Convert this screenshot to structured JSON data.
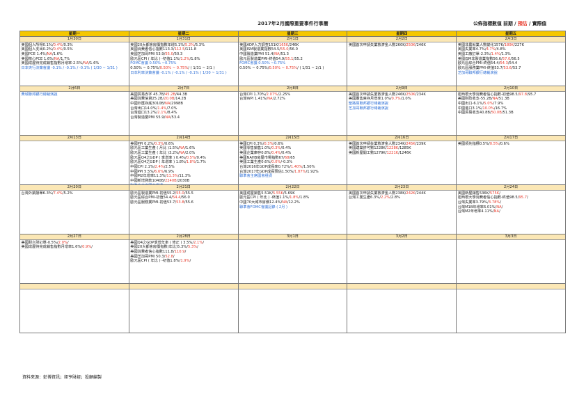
{
  "title": "2017年2月國際重要事件行事曆",
  "legend": {
    "prefix": "公佈指標數值",
    "prior": "前期",
    "slash1": "/",
    "forecast": "預估",
    "slash2": "/",
    "actual": "實際值"
  },
  "weekdays": [
    "星期一",
    "星期二",
    "星期三",
    "星期四",
    "星期五"
  ],
  "colors": {
    "header_bg": "#f5c700",
    "date_bg": "#fbe7b5",
    "forecast": "#e8392a",
    "blue_text": "#2e6fd6"
  },
  "weeks": [
    [
      {
        "date": "1月30日",
        "events": [
          {
            "label": "美國個人所得",
            "values": [
              "0.1%",
              "0.4%",
              "0.3%"
            ]
          },
          {
            "label": "美國個人支出",
            "values": [
              "0.2%",
              "0.4%",
              "0.5%"
            ]
          },
          {
            "label": "美國PCE ",
            "values": [
              "1.4%",
              "NA",
              "1.6%"
            ]
          },
          {
            "label": "美國核心PCE ",
            "values": [
              "1.6%",
              "NA",
              "1.7%"
            ]
          },
          {
            "label": "美國成屋待完成銷售指數月增率",
            "values": [
              "-2.5%",
              "NA",
              "1.6%"
            ]
          },
          {
            "label": "日本央行決策會議 -0.1% / -0.1% / -0.1% ( 1/30 ~ 1/31 )",
            "color": "blue"
          }
        ]
      },
      {
        "date": "1月31日",
        "events": [
          {
            "label": "美國20大都會房價指數年增",
            "values": [
              "5.1%",
              "5.2%",
              "5.3%"
            ]
          },
          {
            "label": "美國消費者信心指數",
            "values": [
              "113.3",
              "112.5",
              "111.8"
            ]
          },
          {
            "label": "美國芝加哥PMI ",
            "values": [
              "53.9",
              "55.0",
              "50.3"
            ]
          },
          {
            "label": "歐元區CPI ( 年比 ) -初值",
            "values": [
              "1.1%",
              "1.2%",
              "1.8%"
            ]
          },
          {
            "label": "FOMC會議 0.50% ~0.75%",
            "color": "blue"
          },
          {
            "label": "",
            "values": [
              "0.50% ~ 0.75%",
              "0.50% ~ 0.75%",
              " ( 1/31 ~ 2/1 )"
            ]
          },
          {
            "label": "日本利率決策會議 -0.1% / -0.1% / -0.1% ( 1/30 ~ 1/31 )",
            "color": "blue"
          }
        ]
      },
      {
        "date": "2月1日",
        "events": [
          {
            "label": "美國ADP人力調查",
            "values": [
              "151K",
              "165K",
              "246K"
            ]
          },
          {
            "label": "美國ISM製造業指數",
            "values": [
              "54.5",
              "55.0",
              "56.0"
            ]
          },
          {
            "label": "中國製造業PMI ",
            "values": [
              "51.4",
              "NA",
              "51.3"
            ]
          },
          {
            "label": "歐元區製造業PMI-終值",
            "values": [
              "54.9",
              "55.1",
              "55.2"
            ]
          },
          {
            "label": "FOMC會議 0.50% ~0.75%",
            "color": "blue"
          },
          {
            "label": "",
            "values": [
              "0.50% ~ 0.75%",
              "0.50% ~ 0.75%",
              " ( 1/31 ~ 2/1 )"
            ]
          }
        ]
      },
      {
        "date": "2月2日",
        "events": [
          {
            "label": "美國首次申請失業救濟金人數",
            "values": [
              "260K",
              "250K",
              "246K"
            ]
          }
        ]
      },
      {
        "date": "2月3日",
        "events": [
          {
            "label": "美國非農就業人數變化",
            "values": [
              "157K",
              "180K",
              "227K"
            ]
          },
          {
            "label": "美國失業率",
            "values": [
              "4.7%",
              "4.7%",
              "4.8%"
            ]
          },
          {
            "label": "美國工廠訂單",
            "values": [
              "-2.3%",
              "1.4%",
              "1.3%"
            ]
          },
          {
            "label": "美國ISM非製造業指數",
            "values": [
              "56.6",
              "57.0",
              "56.5"
            ]
          },
          {
            "label": "歐元區綜合PMI-終值",
            "values": [
              "54.4",
              "54.3",
              "54.4"
            ]
          },
          {
            "label": "歐元區服務業PMI-終值",
            "values": [
              "53.7",
              "53.6",
              "53.7"
            ]
          },
          {
            "label": "芝加哥聯邦銀行總裁演說",
            "color": "blue"
          }
        ]
      }
    ],
    [
      {
        "date": "2月6日",
        "events": [
          {
            "label": "費城聯邦銀行總裁演說",
            "color": "blue"
          }
        ]
      },
      {
        "date": "2月7日",
        "events": [
          {
            "label": "美國貿易赤字 ",
            "values": [
              "45.7B",
              "45.2B",
              "44.3B"
            ]
          },
          {
            "label": "美國消費信貸",
            "values": [
              "25.2B",
              "20.0B",
              "14.2B"
            ]
          },
          {
            "label": "中國外匯存底",
            "values": [
              "3010B",
              "NA",
              "2998B"
            ]
          },
          {
            "label": "台灣出口",
            "values": [
              "14.0%",
              "1.4%",
              "7.0%"
            ]
          },
          {
            "label": "台灣進口",
            "values": [
              "13.2%",
              "2.1%",
              "8.4%"
            ]
          },
          {
            "label": "台灣製造業PMI ",
            "values": [
              "55.9",
              "NA",
              "53.4"
            ]
          }
        ]
      },
      {
        "date": "2月8日",
        "events": [
          {
            "label": "台灣CPI ",
            "values": [
              "1.70%",
              "2.07%",
              "2.25%"
            ]
          },
          {
            "label": "台灣WPI ",
            "values": [
              "1.41%",
              "NA",
              "2.72%"
            ]
          }
        ]
      },
      {
        "date": "2月9日",
        "events": [
          {
            "label": "美國首次申請失業救濟金人數",
            "values": [
              "246K",
              "250K",
              "234K"
            ]
          },
          {
            "label": "美國躉售庫存月增率",
            "values": [
              "1.0%",
              "0.7%",
              "1.0%"
            ]
          },
          {
            "label": "聖路易聯邦銀行總裁演說",
            "color": "blue"
          },
          {
            "label": "芝加哥聯邦銀行總裁演說",
            "color": "blue"
          }
        ]
      },
      {
        "date": "2月10日",
        "events": [
          {
            "label": "密西根大學消費者信心指數-初值",
            "values": [
              "98.5",
              "97.8",
              "95.7"
            ]
          },
          {
            "label": "美國財政收支",
            "values": [
              "-55.2B",
              "NA",
              "51.3B"
            ]
          },
          {
            "label": "中國出口",
            "values": [
              "-6.1%",
              "5.0%",
              "7.9%"
            ]
          },
          {
            "label": "中國進口",
            "values": [
              "3.1%",
              "10.0%",
              "16.7%"
            ]
          },
          {
            "label": "中國貿易收支",
            "values": [
              "40.8B",
              "50.0B",
              "51.3B"
            ]
          }
        ]
      }
    ],
    [
      {
        "date": "2月13日",
        "events": []
      },
      {
        "date": "2月14日",
        "events": [
          {
            "label": "美國PPI ",
            "values": [
              "0.2%",
              "0.3%",
              "0.6%"
            ]
          },
          {
            "label": "歐元區工業生產 ( 月比 )",
            "values": [
              "1.5%",
              "NA",
              "1.6%"
            ]
          },
          {
            "label": "歐元區工業生產 ( 年比 )",
            "values": [
              "3.2%",
              "NA",
              "2.0%"
            ]
          },
          {
            "label": "歐元區Q4之GDP ( 季增率 ) ",
            "values": [
              "0.4%",
              "0.5%",
              "0.4%"
            ]
          },
          {
            "label": "歐元區Q4之GDP ( 年增率 ) ",
            "values": [
              "1.8%",
              "1.8%",
              "1.7%"
            ]
          },
          {
            "label": "中國CPI ",
            "values": [
              "2.1%",
              "2.4%",
              "2.5%"
            ]
          },
          {
            "label": "中國PPI ",
            "values": [
              "5.5%",
              "6.6%",
              "6.9%"
            ]
          },
          {
            "label": "中國M2年增率",
            "values": [
              "11.3%",
              "11.3%",
              "11.3%"
            ]
          },
          {
            "label": "中國新增貸款",
            "values": [
              "1040B",
              "2240B",
              "2030B"
            ]
          },
          {
            "label": "聯準會主席國會證詞",
            "color": "blue"
          }
        ]
      },
      {
        "date": "2月15日",
        "events": [
          {
            "label": "美國CPI ",
            "values": [
              "0.3%",
              "0.3%",
              "0.6%"
            ]
          },
          {
            "label": "美國零售銷售",
            "values": [
              "1.0%",
              "0.3%",
              "0.4%"
            ]
          },
          {
            "label": "美國企業庫存",
            "values": [
              "0.8%",
              "0.4%",
              "0.4%"
            ]
          },
          {
            "label": "美國NAHB房屋市場指數",
            "values": [
              "67",
              "68",
              "65"
            ]
          },
          {
            "label": "美國工業生產",
            "values": [
              "0.6%",
              "0.0%",
              "-0.3%"
            ]
          },
          {
            "label": "台灣2016年GDP成長率",
            "values": [
              "0.72%",
              "1.40%",
              "1.50%"
            ]
          },
          {
            "label": "台灣2017年GDP成長預估",
            "values": [
              "1.50%",
              "1.87%",
              "1.92%"
            ]
          },
          {
            "label": "聯準會主席國會證詞",
            "color": "blue"
          }
        ]
      },
      {
        "date": "2月16日",
        "events": [
          {
            "label": "美國首次申請失業救濟金人數",
            "values": [
              "234K",
              "245K",
              "239K"
            ]
          },
          {
            "label": "美國建築許可數",
            "values": [
              "1228K",
              "1228K",
              "1285K"
            ]
          },
          {
            "label": "美國新屋開工數",
            "values": [
              "1279K",
              "1221K",
              "1246K"
            ]
          }
        ]
      },
      {
        "date": "2月17日",
        "events": [
          {
            "label": "美國領先指標",
            "values": [
              "0.5%",
              "0.5%",
              "0.6%"
            ]
          }
        ]
      }
    ],
    [
      {
        "date": "2月20日",
        "events": [
          {
            "label": "台灣外銷接單",
            "values": [
              "6.3%",
              "7.4%",
              "5.2%"
            ]
          }
        ]
      },
      {
        "date": "2月21日",
        "events": [
          {
            "label": "歐元區製造業PMI-初值",
            "values": [
              "55.2",
              "55.0",
              "55.5"
            ]
          },
          {
            "label": "歐元區綜合PMI-初值",
            "values": [
              "54.4",
              "54.4",
              "56.0"
            ]
          },
          {
            "label": "歐元區服務業PMI-初值",
            "values": [
              "53.7",
              "53.8",
              "55.6"
            ]
          }
        ]
      },
      {
        "date": "2月22日",
        "events": [
          {
            "label": "美國成屋銷售",
            "values": [
              "5.51K",
              "5.55K",
              "5.69K"
            ]
          },
          {
            "label": "歐元區CPI ( 年比 ) -終值",
            "values": [
              "1.1%",
              "1.8%",
              "1.8%"
            ]
          },
          {
            "label": "中國70大城市房價",
            "values": [
              "12.4%",
              "NA",
              "12.2%"
            ]
          },
          {
            "label": "聯準會FOMC會議記錄 ( 2月 )",
            "color": "blue"
          }
        ]
      },
      {
        "date": "2月23日",
        "events": [
          {
            "label": "美國首次申請失業救濟金人數",
            "values": [
              "238K",
              "242K",
              "244K"
            ]
          },
          {
            "label": "台灣工業生產",
            "values": [
              "6.3%",
              "2.2%",
              "2.8%"
            ]
          }
        ]
      },
      {
        "date": "2月24日",
        "events": [
          {
            "label": "美國新屋銷售",
            "values": [
              "536K",
              "575K",
              ""
            ]
          },
          {
            "label": "密西根大學消費者信心指數-終值",
            "values": [
              "98.5",
              "95.7",
              ""
            ]
          },
          {
            "label": "台灣失業率",
            "values": [
              "3.79%",
              "3.78%",
              ""
            ]
          },
          {
            "label": "台灣M1B年增率",
            "values": [
              "6.01%",
              "NA",
              ""
            ]
          },
          {
            "label": "台灣M2年增率",
            "values": [
              "4.11%",
              "NA",
              ""
            ]
          }
        ]
      }
    ],
    [
      {
        "date": "2月27日",
        "events": [
          {
            "label": "美國耐久財訂單",
            "values": [
              "-0.5%",
              "2.0%",
              ""
            ]
          },
          {
            "label": "美國成屋待完成銷售指數月增率",
            "values": [
              "1.6%",
              "0.9%",
              ""
            ]
          }
        ]
      },
      {
        "date": "2月28日",
        "events": [
          {
            "label": "美國Q4之GDP季增年率 ( 修正 ) ",
            "values": [
              "3.5%",
              "2.1%",
              ""
            ]
          },
          {
            "label": "美國20大都會房價指數(年比)",
            "values": [
              "5.3%",
              "5.3%",
              ""
            ]
          },
          {
            "label": "美國消費者信心指數",
            "values": [
              "111.8",
              "110.9",
              ""
            ]
          },
          {
            "label": "美國芝加哥PMI ",
            "values": [
              "50.3",
              "52.8",
              ""
            ]
          },
          {
            "label": "歐元區CPI ( 年比 ) -初值",
            "values": [
              "1.8%",
              "1.9%",
              ""
            ]
          }
        ]
      },
      {
        "date": "3月1日",
        "events": []
      },
      {
        "date": "3月2日",
        "events": []
      },
      {
        "date": "3月3日",
        "events": []
      }
    ],
    [
      {
        "date": "",
        "events": []
      },
      {
        "date": "",
        "events": []
      },
      {
        "date": "",
        "events": []
      },
      {
        "date": "",
        "events": []
      },
      {
        "date": "",
        "events": []
      }
    ]
  ],
  "source": "資料來源：彭博資訊；鉅亨財經；投顧編製"
}
